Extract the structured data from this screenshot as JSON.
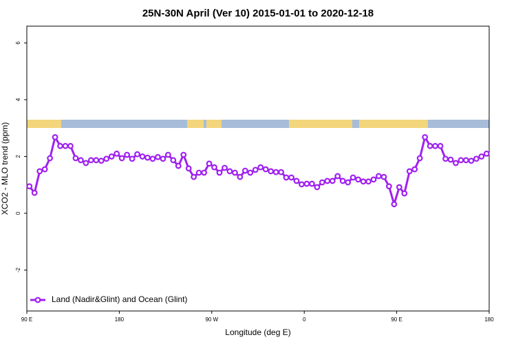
{
  "chart_data": {
    "type": "line",
    "title": "25N-30N April (Ver 10)   2015-01-01 to 2020-12-18",
    "x_label": "Longitude (deg E)",
    "y_label": "XCO2 - MLO trend (ppm)",
    "x": [
      92.5,
      97.5,
      102.5,
      107.5,
      112.5,
      117.5,
      122.5,
      127.5,
      132.5,
      137.5,
      142.5,
      147.5,
      152.5,
      157.5,
      162.5,
      167.5,
      172.5,
      177.5,
      182.5,
      187.5,
      192.5,
      197.5,
      202.5,
      207.5,
      212.5,
      217.5,
      222.5,
      227.5,
      232.5,
      237.5,
      242.5,
      247.5,
      252.5,
      257.5,
      262.5,
      267.5,
      272.5,
      277.5,
      282.5,
      287.5,
      292.5,
      297.5,
      302.5,
      307.5,
      312.5,
      317.5,
      322.5,
      327.5,
      332.5,
      337.5,
      342.5,
      347.5,
      352.5,
      357.5,
      362.5,
      367.5,
      372.5,
      377.5,
      382.5,
      387.5,
      392.5,
      397.5,
      402.5,
      407.5,
      412.5,
      417.5,
      422.5,
      427.5,
      432.5,
      437.5,
      442.5,
      447.5,
      452.5,
      457.5,
      462.5,
      467.5,
      472.5,
      477.5,
      482.5,
      487.5,
      492.5,
      497.5,
      502.5,
      507.5,
      512.5,
      517.5,
      522.5,
      527.5,
      532.5,
      537.5
    ],
    "series": [
      {
        "name": "Land (Nadir&Glint) and Ocean (Glint)",
        "color": "#a020f0",
        "values": [
          0.95,
          0.72,
          1.48,
          1.55,
          1.94,
          2.68,
          2.37,
          2.37,
          2.37,
          1.94,
          1.87,
          1.77,
          1.87,
          1.87,
          1.85,
          1.92,
          2.0,
          2.1,
          1.94,
          2.06,
          1.92,
          2.08,
          2.0,
          1.96,
          1.92,
          1.98,
          1.92,
          2.06,
          1.87,
          1.67,
          2.06,
          1.58,
          1.28,
          1.43,
          1.43,
          1.75,
          1.62,
          1.43,
          1.6,
          1.48,
          1.43,
          1.28,
          1.5,
          1.43,
          1.53,
          1.62,
          1.55,
          1.48,
          1.45,
          1.45,
          1.26,
          1.26,
          1.14,
          1.02,
          1.04,
          1.04,
          0.92,
          1.09,
          1.14,
          1.14,
          1.31,
          1.14,
          1.09,
          1.26,
          1.19,
          1.12,
          1.12,
          1.19,
          1.31,
          1.28,
          0.95,
          0.32,
          0.92,
          0.7,
          1.48,
          1.55,
          1.94,
          2.68,
          2.37,
          2.37,
          2.37,
          1.92,
          1.89,
          1.77,
          1.87,
          1.87,
          1.85,
          1.92,
          2.0,
          2.1
        ]
      }
    ],
    "xlim": [
      90,
      540
    ],
    "xticks": [
      {
        "value": 90,
        "label": "90 E"
      },
      180,
      {
        "value": 270,
        "label": "90 W"
      },
      {
        "value": 360,
        "label": "0"
      },
      {
        "value": 450,
        "label": "90 E"
      },
      {
        "value": 540,
        "label": "180"
      }
    ],
    "ylim": [
      -3.44,
      6.59
    ],
    "yticks": [
      -2,
      0,
      2,
      4,
      6
    ],
    "legend": "bottom-left"
  }
}
